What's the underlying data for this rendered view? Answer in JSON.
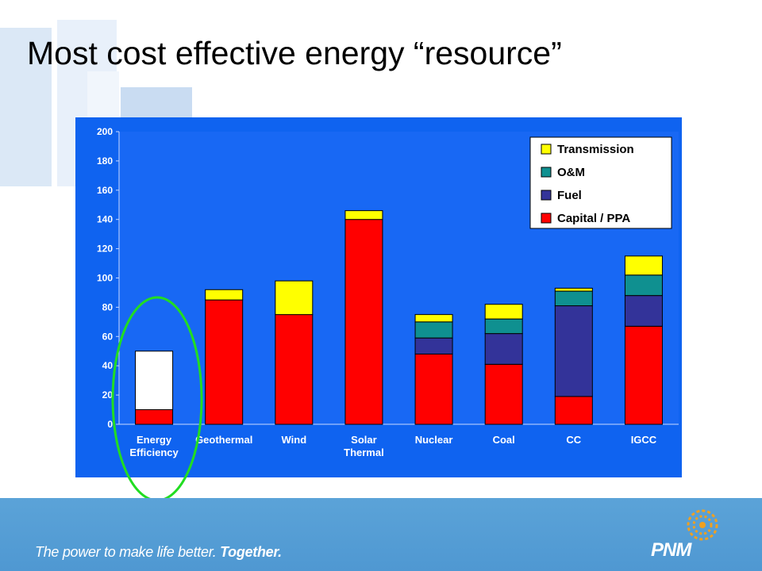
{
  "slide": {
    "title": "Most cost effective energy “resource”",
    "tagline_regular": "The power to make life better.",
    "tagline_bold": "Together.",
    "logo_text": "PNM",
    "logo_icon": "sun-swirl-icon"
  },
  "colors": {
    "panel": "#0f63f0",
    "plot": "#1868f4",
    "capital": "#ff0000",
    "fuel": "#333399",
    "om": "#0f9090",
    "transmission": "#ffff00",
    "ee_remainder": "#ffffff",
    "highlight": "#22dd22"
  },
  "chart_data": {
    "type": "bar",
    "stacked": true,
    "categories": [
      "Energy Efficiency",
      "Geothermal",
      "Wind",
      "Solar Thermal",
      "Nuclear",
      "Coal",
      "CC",
      "IGCC"
    ],
    "category_label_lines": [
      [
        "Energy",
        "Efficiency"
      ],
      [
        "Geothermal"
      ],
      [
        "Wind"
      ],
      [
        "Solar",
        "Thermal"
      ],
      [
        "Nuclear"
      ],
      [
        "Coal"
      ],
      [
        "CC"
      ],
      [
        "IGCC"
      ]
    ],
    "series": [
      {
        "name": "Capital / PPA",
        "values": [
          10,
          85,
          75,
          140,
          48,
          41,
          19,
          67
        ]
      },
      {
        "name": "Fuel",
        "values": [
          0,
          0,
          0,
          0,
          11,
          21,
          62,
          21
        ]
      },
      {
        "name": "O&M",
        "values": [
          0,
          0,
          0,
          0,
          11,
          10,
          10,
          14
        ]
      },
      {
        "name": "Transmission",
        "values": [
          0,
          7,
          23,
          6,
          5,
          10,
          2,
          13
        ]
      }
    ],
    "unlabeled_segment": {
      "category": "Energy Efficiency",
      "value": 40
    },
    "legend_order": [
      "Transmission",
      "O&M",
      "Fuel",
      "Capital / PPA"
    ],
    "legend_position": "top-right",
    "ylim": [
      0,
      200
    ],
    "yticks": [
      "0",
      "20",
      "40",
      "60",
      "80",
      "100",
      "120",
      "140",
      "160",
      "180",
      "200"
    ],
    "ytick_values": [
      0,
      20,
      40,
      60,
      80,
      100,
      120,
      140,
      160,
      180,
      200
    ],
    "highlighted_category": "Energy Efficiency",
    "grid": false
  }
}
